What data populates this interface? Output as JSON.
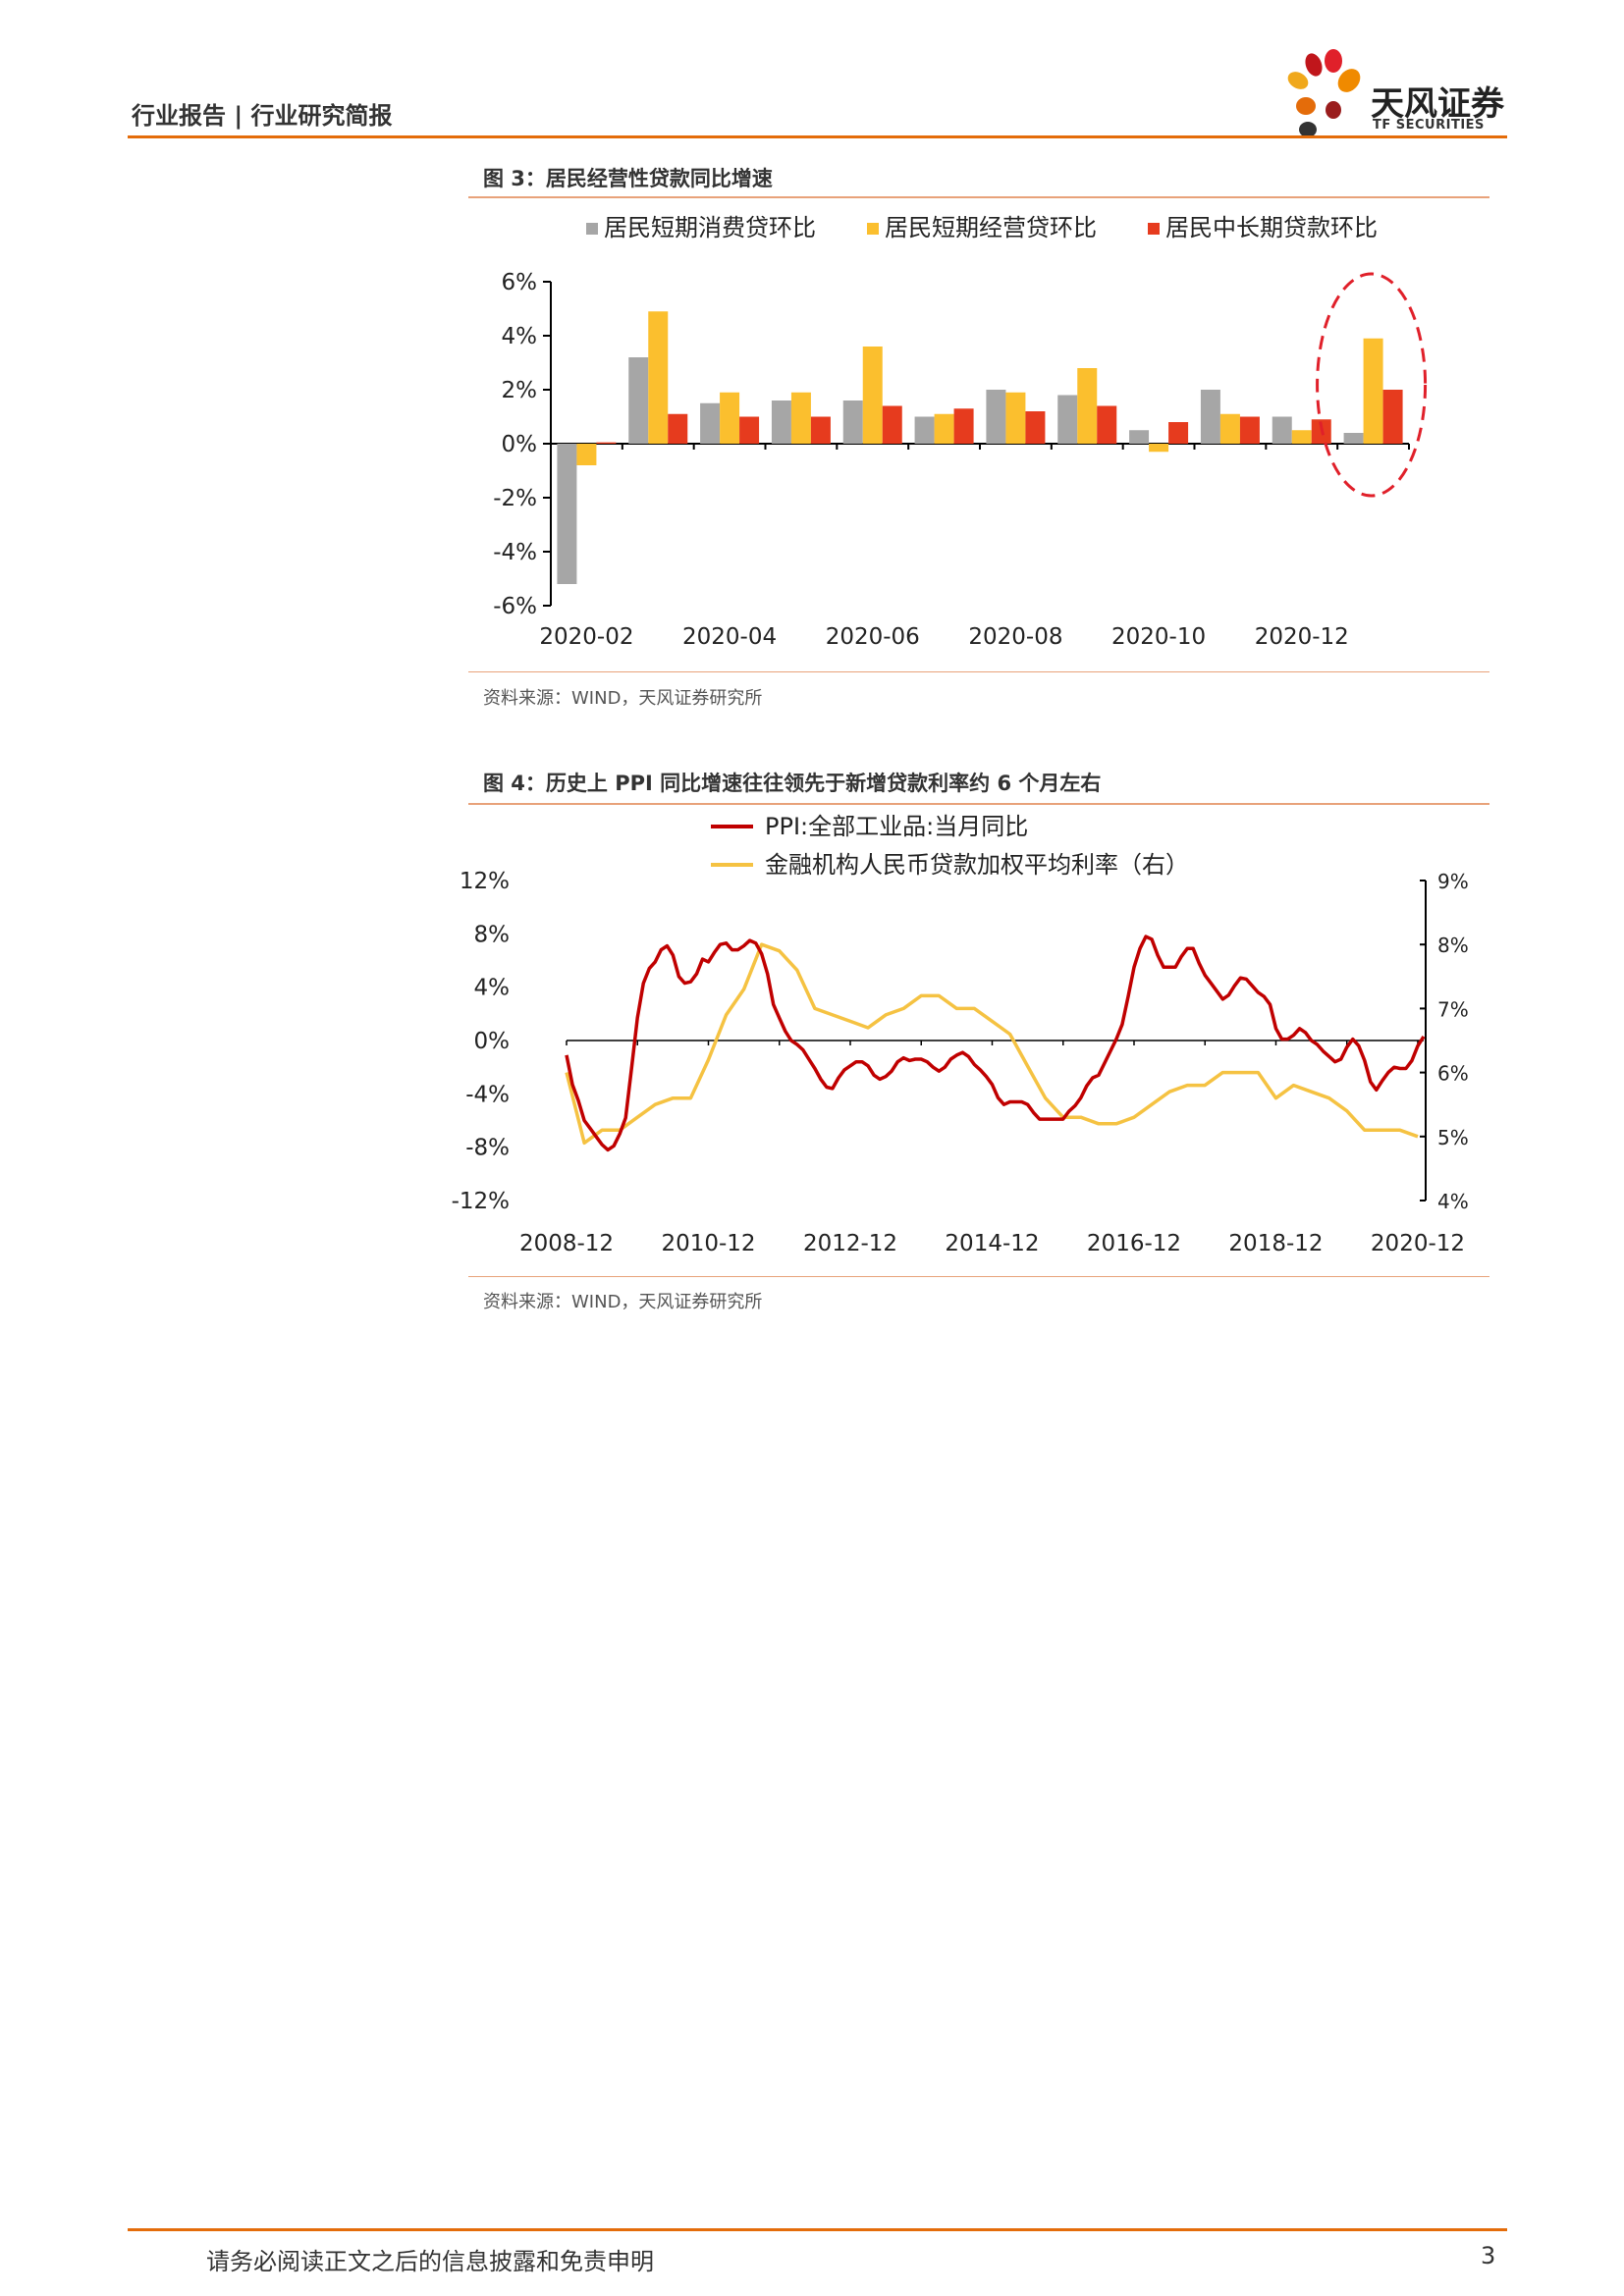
{
  "header": {
    "left": "行业报告 | 行业研究简报",
    "logo_cn": "天风证券",
    "logo_en": "TF SECURITIES"
  },
  "figure3": {
    "title": "图 3：居民经营性贷款同比增速",
    "source": "资料来源：WIND，天风证券研究所"
  },
  "figure4": {
    "title": "图 4：历史上 PPI 同比增速往往领先于新增贷款利率约 6 个月左右",
    "source": "资料来源：WIND，天风证券研究所"
  },
  "footer": {
    "disclaimer": "请务必阅读正文之后的信息披露和免责申明",
    "page": "3"
  },
  "colors": {
    "accent": "#e46c0a",
    "gray_bar": "#a6a6a6",
    "yellow": "#fbbf2e",
    "red_bar": "#e63b1e",
    "ppi_line": "#c00000",
    "rate_line": "#f5c242",
    "highlight_ellipse": "#e0202a"
  },
  "chart_data": [
    {
      "type": "bar",
      "title": "",
      "categories": [
        "2020-02",
        "2020-03",
        "2020-04",
        "2020-05",
        "2020-06",
        "2020-07",
        "2020-08",
        "2020-09",
        "2020-10",
        "2020-11",
        "2020-12",
        "2021-01"
      ],
      "tick_labels": [
        "2020-02",
        "2020-04",
        "2020-06",
        "2020-08",
        "2020-10",
        "2020-12"
      ],
      "series": [
        {
          "name": "居民短期消费贷环比",
          "color": "#a6a6a6",
          "values": [
            -5.2,
            3.2,
            1.5,
            1.6,
            1.6,
            1.0,
            2.0,
            1.8,
            0.5,
            2.0,
            1.0,
            0.4
          ]
        },
        {
          "name": "居民短期经营贷环比",
          "color": "#fbbf2e",
          "values": [
            -0.8,
            4.9,
            1.9,
            1.9,
            3.6,
            1.1,
            1.9,
            2.8,
            -0.3,
            1.1,
            0.5,
            3.9
          ]
        },
        {
          "name": "居民中长期贷款环比",
          "color": "#e63b1e",
          "values": [
            0.05,
            1.1,
            1.0,
            1.0,
            1.4,
            1.3,
            1.2,
            1.4,
            0.8,
            1.0,
            0.9,
            2.0
          ]
        }
      ],
      "ylim": [
        -6,
        6
      ],
      "yticks": [
        "6%",
        "4%",
        "2%",
        "0%",
        "-2%",
        "-4%",
        "-6%"
      ],
      "yticks_values": [
        6,
        4,
        2,
        0,
        -2,
        -4,
        -6
      ],
      "legend_position": "top",
      "annotation": "dashed red ellipse highlighting 2021-01"
    },
    {
      "type": "line",
      "title": "",
      "x_tick_labels": [
        "2008-12",
        "2010-12",
        "2012-12",
        "2014-12",
        "2016-12",
        "2018-12",
        "2020-12"
      ],
      "x_start": "2008-12",
      "x_end": "2021-01",
      "left_axis": {
        "ylim": [
          -12,
          12
        ],
        "ticks": [
          "12%",
          "8%",
          "4%",
          "0%",
          "-4%",
          "-8%",
          "-12%"
        ],
        "tick_values": [
          12,
          8,
          4,
          0,
          -4,
          -8,
          -12
        ]
      },
      "right_axis": {
        "ylim": [
          4,
          9
        ],
        "ticks": [
          "9%",
          "8%",
          "7%",
          "6%",
          "5%",
          "4%"
        ],
        "tick_values": [
          9,
          8,
          7,
          6,
          5,
          4
        ]
      },
      "legend_position": "top",
      "series": [
        {
          "name": "PPI:全部工业品:当月同比",
          "axis": "left",
          "color": "#c00000",
          "points": [
            [
              "2008-12",
              -1.1
            ],
            [
              "2009-01",
              -3.3
            ],
            [
              "2009-02",
              -4.5
            ],
            [
              "2009-03",
              -6.0
            ],
            [
              "2009-04",
              -6.6
            ],
            [
              "2009-05",
              -7.2
            ],
            [
              "2009-06",
              -7.8
            ],
            [
              "2009-07",
              -8.2
            ],
            [
              "2009-08",
              -7.9
            ],
            [
              "2009-09",
              -7.0
            ],
            [
              "2009-10",
              -5.8
            ],
            [
              "2009-11",
              -2.1
            ],
            [
              "2009-12",
              1.7
            ],
            [
              "2010-01",
              4.3
            ],
            [
              "2010-02",
              5.4
            ],
            [
              "2010-03",
              5.9
            ],
            [
              "2010-04",
              6.8
            ],
            [
              "2010-05",
              7.1
            ],
            [
              "2010-06",
              6.4
            ],
            [
              "2010-07",
              4.8
            ],
            [
              "2010-08",
              4.3
            ],
            [
              "2010-09",
              4.4
            ],
            [
              "2010-10",
              5.0
            ],
            [
              "2010-11",
              6.1
            ],
            [
              "2010-12",
              5.9
            ],
            [
              "2011-01",
              6.6
            ],
            [
              "2011-02",
              7.2
            ],
            [
              "2011-03",
              7.3
            ],
            [
              "2011-04",
              6.8
            ],
            [
              "2011-05",
              6.8
            ],
            [
              "2011-06",
              7.1
            ],
            [
              "2011-07",
              7.5
            ],
            [
              "2011-08",
              7.3
            ],
            [
              "2011-09",
              6.5
            ],
            [
              "2011-10",
              5.0
            ],
            [
              "2011-11",
              2.7
            ],
            [
              "2011-12",
              1.7
            ],
            [
              "2012-01",
              0.7
            ],
            [
              "2012-02",
              0.0
            ],
            [
              "2012-03",
              -0.3
            ],
            [
              "2012-04",
              -0.7
            ],
            [
              "2012-05",
              -1.4
            ],
            [
              "2012-06",
              -2.1
            ],
            [
              "2012-07",
              -2.9
            ],
            [
              "2012-08",
              -3.5
            ],
            [
              "2012-09",
              -3.6
            ],
            [
              "2012-10",
              -2.8
            ],
            [
              "2012-11",
              -2.2
            ],
            [
              "2012-12",
              -1.9
            ],
            [
              "2013-01",
              -1.6
            ],
            [
              "2013-02",
              -1.6
            ],
            [
              "2013-03",
              -1.9
            ],
            [
              "2013-04",
              -2.6
            ],
            [
              "2013-05",
              -2.9
            ],
            [
              "2013-06",
              -2.7
            ],
            [
              "2013-07",
              -2.3
            ],
            [
              "2013-08",
              -1.6
            ],
            [
              "2013-09",
              -1.3
            ],
            [
              "2013-10",
              -1.5
            ],
            [
              "2013-11",
              -1.4
            ],
            [
              "2013-12",
              -1.4
            ],
            [
              "2014-01",
              -1.6
            ],
            [
              "2014-02",
              -2.0
            ],
            [
              "2014-03",
              -2.3
            ],
            [
              "2014-04",
              -2.0
            ],
            [
              "2014-05",
              -1.4
            ],
            [
              "2014-06",
              -1.1
            ],
            [
              "2014-07",
              -0.9
            ],
            [
              "2014-08",
              -1.2
            ],
            [
              "2014-09",
              -1.8
            ],
            [
              "2014-10",
              -2.2
            ],
            [
              "2014-11",
              -2.7
            ],
            [
              "2014-12",
              -3.3
            ],
            [
              "2015-01",
              -4.3
            ],
            [
              "2015-02",
              -4.8
            ],
            [
              "2015-03",
              -4.6
            ],
            [
              "2015-04",
              -4.6
            ],
            [
              "2015-05",
              -4.6
            ],
            [
              "2015-06",
              -4.8
            ],
            [
              "2015-07",
              -5.4
            ],
            [
              "2015-08",
              -5.9
            ],
            [
              "2015-09",
              -5.9
            ],
            [
              "2015-10",
              -5.9
            ],
            [
              "2015-11",
              -5.9
            ],
            [
              "2015-12",
              -5.9
            ],
            [
              "2016-01",
              -5.3
            ],
            [
              "2016-02",
              -4.9
            ],
            [
              "2016-03",
              -4.3
            ],
            [
              "2016-04",
              -3.4
            ],
            [
              "2016-05",
              -2.8
            ],
            [
              "2016-06",
              -2.6
            ],
            [
              "2016-07",
              -1.7
            ],
            [
              "2016-08",
              -0.8
            ],
            [
              "2016-09",
              0.1
            ],
            [
              "2016-10",
              1.2
            ],
            [
              "2016-11",
              3.3
            ],
            [
              "2016-12",
              5.5
            ],
            [
              "2017-01",
              6.9
            ],
            [
              "2017-02",
              7.8
            ],
            [
              "2017-03",
              7.6
            ],
            [
              "2017-04",
              6.4
            ],
            [
              "2017-05",
              5.5
            ],
            [
              "2017-06",
              5.5
            ],
            [
              "2017-07",
              5.5
            ],
            [
              "2017-08",
              6.3
            ],
            [
              "2017-09",
              6.9
            ],
            [
              "2017-10",
              6.9
            ],
            [
              "2017-11",
              5.8
            ],
            [
              "2017-12",
              4.9
            ],
            [
              "2018-01",
              4.3
            ],
            [
              "2018-02",
              3.7
            ],
            [
              "2018-03",
              3.1
            ],
            [
              "2018-04",
              3.4
            ],
            [
              "2018-05",
              4.1
            ],
            [
              "2018-06",
              4.7
            ],
            [
              "2018-07",
              4.6
            ],
            [
              "2018-08",
              4.1
            ],
            [
              "2018-09",
              3.6
            ],
            [
              "2018-10",
              3.3
            ],
            [
              "2018-11",
              2.7
            ],
            [
              "2018-12",
              0.9
            ],
            [
              "2019-01",
              0.1
            ],
            [
              "2019-02",
              0.1
            ],
            [
              "2019-03",
              0.4
            ],
            [
              "2019-04",
              0.9
            ],
            [
              "2019-05",
              0.6
            ],
            [
              "2019-06",
              0.0
            ],
            [
              "2019-07",
              -0.3
            ],
            [
              "2019-08",
              -0.8
            ],
            [
              "2019-09",
              -1.2
            ],
            [
              "2019-10",
              -1.6
            ],
            [
              "2019-11",
              -1.4
            ],
            [
              "2019-12",
              -0.5
            ],
            [
              "2020-01",
              0.1
            ],
            [
              "2020-02",
              -0.4
            ],
            [
              "2020-03",
              -1.5
            ],
            [
              "2020-04",
              -3.1
            ],
            [
              "2020-05",
              -3.7
            ],
            [
              "2020-06",
              -3.0
            ],
            [
              "2020-07",
              -2.4
            ],
            [
              "2020-08",
              -2.0
            ],
            [
              "2020-09",
              -2.1
            ],
            [
              "2020-10",
              -2.1
            ],
            [
              "2020-11",
              -1.5
            ],
            [
              "2020-12",
              -0.4
            ],
            [
              "2021-01",
              0.3
            ]
          ]
        },
        {
          "name": "金融机构人民币贷款加权平均利率（右）",
          "axis": "right",
          "color": "#f5c242",
          "points": [
            [
              "2008-12",
              6.0
            ],
            [
              "2009-03",
              4.9
            ],
            [
              "2009-06",
              5.1
            ],
            [
              "2009-09",
              5.1
            ],
            [
              "2009-12",
              5.3
            ],
            [
              "2010-03",
              5.5
            ],
            [
              "2010-06",
              5.6
            ],
            [
              "2010-09",
              5.6
            ],
            [
              "2010-12",
              6.2
            ],
            [
              "2011-03",
              6.9
            ],
            [
              "2011-06",
              7.3
            ],
            [
              "2011-09",
              8.0
            ],
            [
              "2011-12",
              7.9
            ],
            [
              "2012-03",
              7.6
            ],
            [
              "2012-06",
              7.0
            ],
            [
              "2012-09",
              6.9
            ],
            [
              "2012-12",
              6.8
            ],
            [
              "2013-03",
              6.7
            ],
            [
              "2013-06",
              6.9
            ],
            [
              "2013-09",
              7.0
            ],
            [
              "2013-12",
              7.2
            ],
            [
              "2014-03",
              7.2
            ],
            [
              "2014-06",
              7.0
            ],
            [
              "2014-09",
              7.0
            ],
            [
              "2014-12",
              6.8
            ],
            [
              "2015-03",
              6.6
            ],
            [
              "2015-06",
              6.1
            ],
            [
              "2015-09",
              5.6
            ],
            [
              "2015-12",
              5.3
            ],
            [
              "2016-03",
              5.3
            ],
            [
              "2016-06",
              5.2
            ],
            [
              "2016-09",
              5.2
            ],
            [
              "2016-12",
              5.3
            ],
            [
              "2017-03",
              5.5
            ],
            [
              "2017-06",
              5.7
            ],
            [
              "2017-09",
              5.8
            ],
            [
              "2017-12",
              5.8
            ],
            [
              "2018-03",
              6.0
            ],
            [
              "2018-06",
              6.0
            ],
            [
              "2018-09",
              6.0
            ],
            [
              "2018-12",
              5.6
            ],
            [
              "2019-03",
              5.8
            ],
            [
              "2019-06",
              5.7
            ],
            [
              "2019-09",
              5.6
            ],
            [
              "2019-12",
              5.4
            ],
            [
              "2020-03",
              5.1
            ],
            [
              "2020-06",
              5.1
            ],
            [
              "2020-09",
              5.1
            ],
            [
              "2020-12",
              5.0
            ]
          ]
        }
      ]
    }
  ]
}
